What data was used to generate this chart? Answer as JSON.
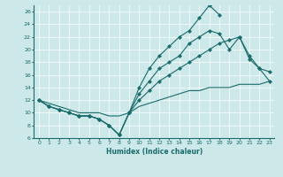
{
  "xlabel": "Humidex (Indice chaleur)",
  "bg_color": "#cce8e8",
  "line_color": "#1a6b6b",
  "xlim": [
    -0.5,
    23.5
  ],
  "ylim": [
    6,
    27
  ],
  "xticks": [
    0,
    1,
    2,
    3,
    4,
    5,
    6,
    7,
    8,
    9,
    10,
    11,
    12,
    13,
    14,
    15,
    16,
    17,
    18,
    19,
    20,
    21,
    22,
    23
  ],
  "yticks": [
    6,
    8,
    10,
    12,
    14,
    16,
    18,
    20,
    22,
    24,
    26
  ],
  "lines": [
    {
      "x": [
        0,
        1,
        2,
        3,
        4,
        5,
        6,
        7,
        8,
        9,
        10,
        11,
        12,
        13,
        14,
        15,
        16,
        17,
        18
      ],
      "y": [
        12,
        11,
        10.5,
        10,
        9.5,
        9.5,
        9,
        8,
        6.5,
        10,
        14,
        17,
        19,
        20.5,
        22,
        23,
        25,
        27,
        25.5
      ],
      "markers": true
    },
    {
      "x": [
        0,
        1,
        2,
        3,
        4,
        5,
        6,
        7,
        8,
        9,
        10,
        11,
        12,
        13,
        14,
        15,
        16,
        17,
        18,
        19,
        20,
        21,
        22,
        23
      ],
      "y": [
        12,
        11,
        10.5,
        10,
        9.5,
        9.5,
        9,
        8,
        6.5,
        10,
        13,
        15,
        17,
        18,
        19,
        21,
        22,
        23,
        22.5,
        20,
        22,
        18.5,
        17,
        16.5
      ],
      "markers": true
    },
    {
      "x": [
        0,
        1,
        2,
        3,
        4,
        5,
        6,
        7,
        8,
        9,
        10,
        11,
        12,
        13,
        14,
        15,
        16,
        17,
        18,
        19,
        20,
        21,
        22,
        23
      ],
      "y": [
        12,
        11,
        10.5,
        10,
        9.5,
        9.5,
        9,
        8,
        6.5,
        10,
        12,
        13.5,
        15,
        16,
        17,
        18,
        19,
        20,
        21,
        21.5,
        22,
        19,
        17,
        15
      ],
      "markers": true
    },
    {
      "x": [
        0,
        1,
        2,
        3,
        4,
        5,
        6,
        7,
        8,
        9,
        10,
        11,
        12,
        13,
        14,
        15,
        16,
        17,
        18,
        19,
        20,
        21,
        22,
        23
      ],
      "y": [
        12,
        11.5,
        11,
        10.5,
        10,
        10,
        10,
        9.5,
        9.5,
        10,
        11,
        11.5,
        12,
        12.5,
        13,
        13.5,
        13.5,
        14,
        14,
        14,
        14.5,
        14.5,
        14.5,
        15
      ],
      "markers": false
    }
  ]
}
